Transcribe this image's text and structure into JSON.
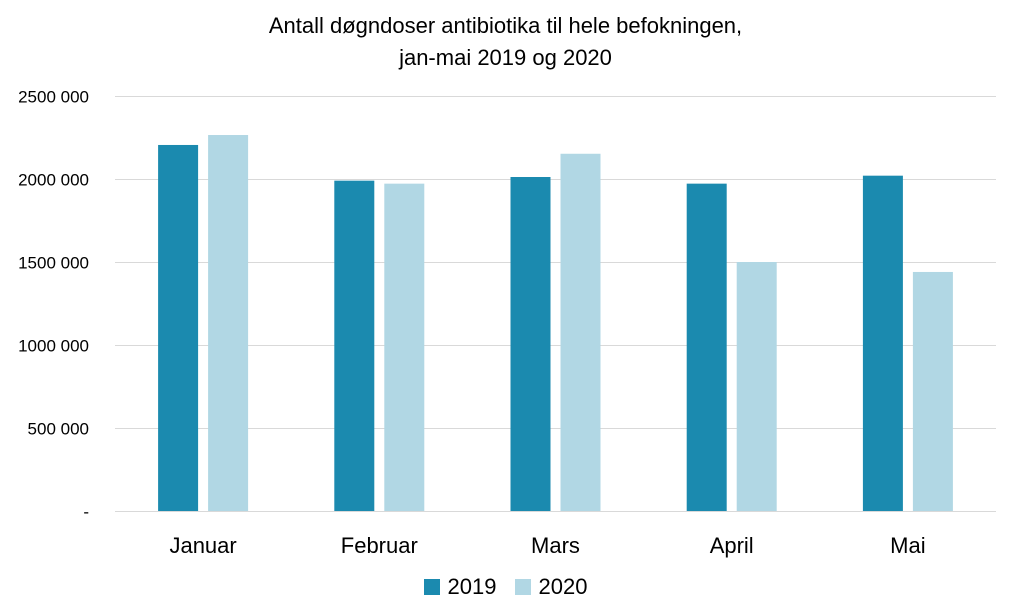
{
  "chart_data": {
    "type": "bar",
    "title_lines": [
      "Antall døgndoser antibiotika til hele befokningen,",
      "jan-mai 2019 og 2020"
    ],
    "categories": [
      "Januar",
      "Februar",
      "Mars",
      "April",
      "Mai"
    ],
    "series": [
      {
        "name": "2019",
        "color": "#1b8aaf",
        "values": [
          2205000,
          1990000,
          2012000,
          1972000,
          2020000
        ]
      },
      {
        "name": "2020",
        "color": "#b1d7e4",
        "values": [
          2265000,
          1972000,
          2152000,
          1500000,
          1440000
        ]
      }
    ],
    "ylim": [
      0,
      2500000
    ],
    "yticks": [
      {
        "value": 0,
        "label": "-"
      },
      {
        "value": 500000,
        "label": "500 000"
      },
      {
        "value": 1000000,
        "label": "1000 000"
      },
      {
        "value": 1500000,
        "label": "1500 000"
      },
      {
        "value": 2000000,
        "label": "2000 000"
      },
      {
        "value": 2500000,
        "label": "2500 000"
      }
    ],
    "grid": true,
    "gridline_color": "#d9d9d9",
    "legend_position": "bottom"
  }
}
